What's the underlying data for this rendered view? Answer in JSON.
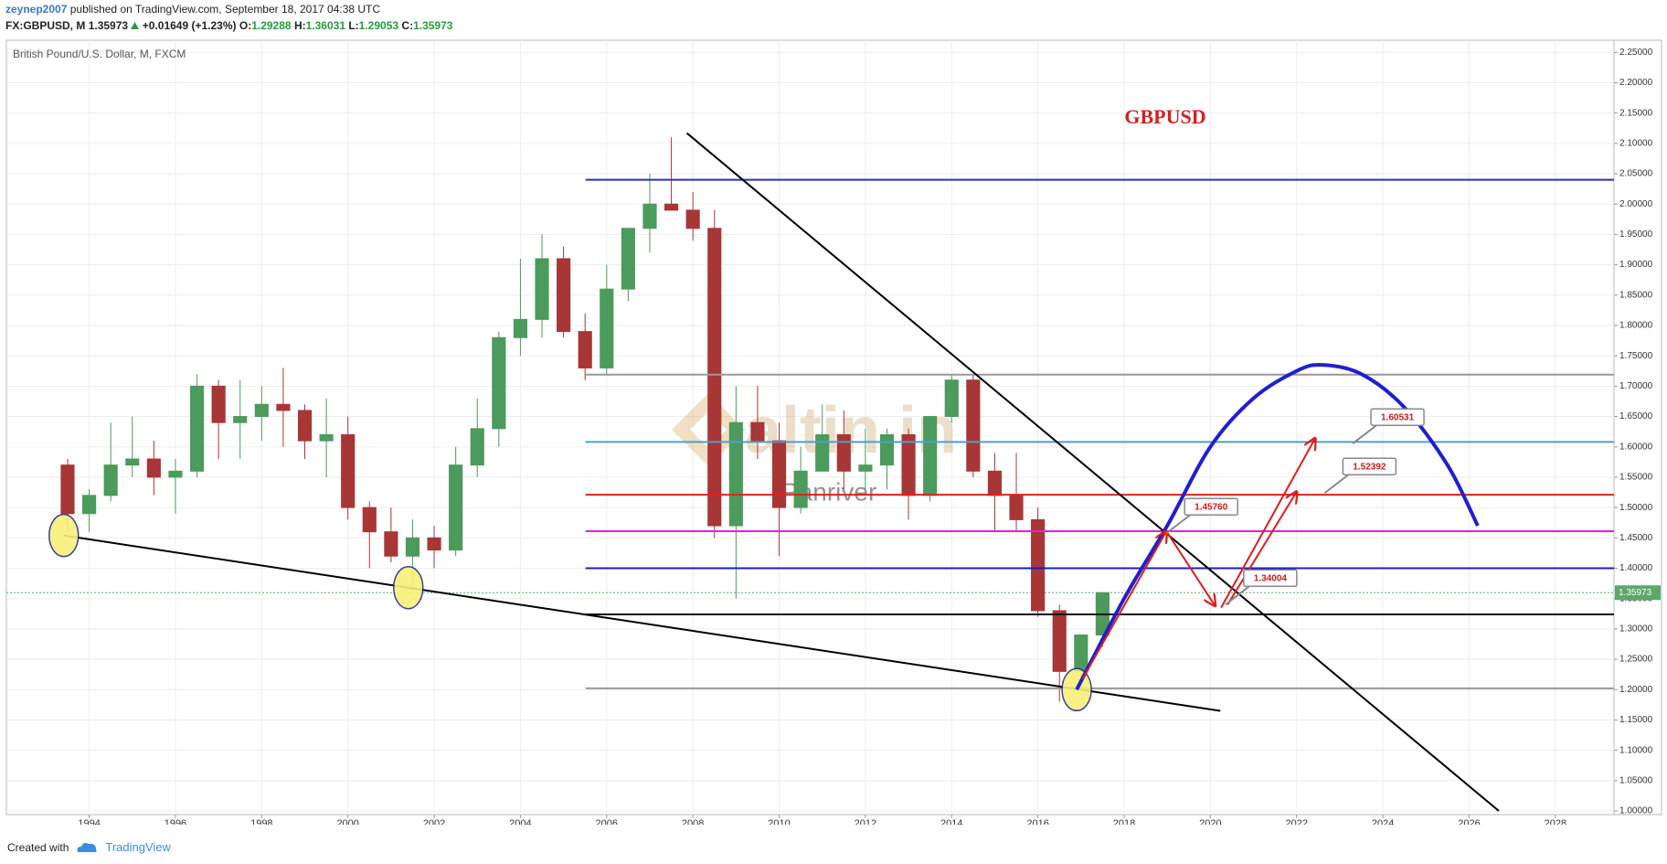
{
  "header": {
    "author": "zeynep2007",
    "published": "published on TradingView.com, September 18, 2017 04:38 UTC",
    "symbol": "FX:GBPUSD, M",
    "last": "1.35973",
    "change": "+0.01649 (+1.23%)",
    "open_label": "O:",
    "open": "1.29288",
    "high_label": "H:",
    "high": "1.36031",
    "low_label": "L:",
    "low": "1.29053",
    "close_label": "C:",
    "close": "1.35973"
  },
  "footer": {
    "created": "Created with",
    "brand": "TradingView"
  },
  "chart_data": {
    "type": "candlestick",
    "title": "GBPUSD",
    "subtitle": "British Pound/U.S. Dollar, M, FXCM",
    "watermark": {
      "logo": "altin.in",
      "sub": "Panriver"
    },
    "x": [
      1993.5,
      1994,
      1994.5,
      1995,
      1995.5,
      1996,
      1996.5,
      1997,
      1997.5,
      1998,
      1998.5,
      1999,
      1999.5,
      2000,
      2000.5,
      2001,
      2001.5,
      2002,
      2002.5,
      2003,
      2003.5,
      2004,
      2004.5,
      2005,
      2005.5,
      2006,
      2006.5,
      2007,
      2007.5,
      2008,
      2008.5,
      2009,
      2009.5,
      2010,
      2010.5,
      2011,
      2011.5,
      2012,
      2012.5,
      2013,
      2013.5,
      2014,
      2014.5,
      2015,
      2015.5,
      2016,
      2016.5,
      2017,
      2017.5
    ],
    "open": [
      1.57,
      1.49,
      1.52,
      1.57,
      1.58,
      1.55,
      1.56,
      1.7,
      1.64,
      1.65,
      1.67,
      1.66,
      1.61,
      1.62,
      1.5,
      1.46,
      1.42,
      1.45,
      1.43,
      1.57,
      1.63,
      1.78,
      1.81,
      1.91,
      1.79,
      1.73,
      1.86,
      1.96,
      2.0,
      1.99,
      1.96,
      1.47,
      1.64,
      1.61,
      1.5,
      1.56,
      1.62,
      1.56,
      1.57,
      1.62,
      1.52,
      1.65,
      1.71,
      1.56,
      1.52,
      1.48,
      1.33,
      1.23,
      1.29
    ],
    "high": [
      1.58,
      1.53,
      1.64,
      1.65,
      1.61,
      1.58,
      1.72,
      1.71,
      1.71,
      1.7,
      1.73,
      1.67,
      1.68,
      1.65,
      1.51,
      1.5,
      1.48,
      1.47,
      1.6,
      1.68,
      1.79,
      1.91,
      1.95,
      1.93,
      1.82,
      1.9,
      1.96,
      2.05,
      2.11,
      2.02,
      1.99,
      1.7,
      1.7,
      1.64,
      1.6,
      1.67,
      1.66,
      1.63,
      1.63,
      1.63,
      1.65,
      1.72,
      1.72,
      1.59,
      1.59,
      1.5,
      1.34,
      1.29,
      1.36
    ],
    "low": [
      1.46,
      1.46,
      1.51,
      1.55,
      1.52,
      1.49,
      1.55,
      1.58,
      1.58,
      1.61,
      1.6,
      1.58,
      1.55,
      1.48,
      1.4,
      1.41,
      1.37,
      1.4,
      1.42,
      1.55,
      1.6,
      1.75,
      1.78,
      1.78,
      1.71,
      1.72,
      1.84,
      1.92,
      1.99,
      1.94,
      1.45,
      1.35,
      1.58,
      1.42,
      1.49,
      1.56,
      1.53,
      1.53,
      1.53,
      1.48,
      1.51,
      1.64,
      1.55,
      1.46,
      1.46,
      1.32,
      1.18,
      1.2,
      1.27
    ],
    "close": [
      1.49,
      1.52,
      1.57,
      1.58,
      1.55,
      1.56,
      1.7,
      1.64,
      1.65,
      1.67,
      1.66,
      1.61,
      1.62,
      1.5,
      1.46,
      1.42,
      1.45,
      1.43,
      1.57,
      1.63,
      1.78,
      1.81,
      1.91,
      1.79,
      1.73,
      1.86,
      1.96,
      2.0,
      1.99,
      1.96,
      1.47,
      1.64,
      1.61,
      1.5,
      1.56,
      1.62,
      1.56,
      1.57,
      1.62,
      1.52,
      1.65,
      1.71,
      1.56,
      1.52,
      1.48,
      1.33,
      1.23,
      1.29,
      1.35973
    ],
    "up_color": "#4c9a5c",
    "down_color": "#a83636",
    "xlim": [
      1992.08,
      2029.36
    ],
    "ylim": [
      0.994,
      2.27
    ],
    "xticks": [
      1994,
      1996,
      1998,
      2000,
      2002,
      2004,
      2006,
      2008,
      2010,
      2012,
      2014,
      2016,
      2018,
      2020,
      2022,
      2024,
      2026,
      2028
    ],
    "yticks": [
      {
        "value": 1,
        "label": "1.00000"
      },
      {
        "value": 1.05,
        "label": "1.05000"
      },
      {
        "value": 1.1,
        "label": "1.10000"
      },
      {
        "value": 1.15,
        "label": "1.15000"
      },
      {
        "value": 1.2,
        "label": "1.20000"
      },
      {
        "value": 1.25,
        "label": "1.25000"
      },
      {
        "value": 1.3,
        "label": "1.30000"
      },
      {
        "value": 1.35,
        "label": "1.35000"
      },
      {
        "value": 1.4,
        "label": "1.40000"
      },
      {
        "value": 1.45,
        "label": "1.45000"
      },
      {
        "value": 1.5,
        "label": "1.50000"
      },
      {
        "value": 1.55,
        "label": "1.55000"
      },
      {
        "value": 1.6,
        "label": "1.60000"
      },
      {
        "value": 1.65,
        "label": "1.65000"
      },
      {
        "value": 1.7,
        "label": "1.70000"
      },
      {
        "value": 1.75,
        "label": "1.75000"
      },
      {
        "value": 1.8,
        "label": "1.80000"
      },
      {
        "value": 1.85,
        "label": "1.85000"
      },
      {
        "value": 1.9,
        "label": "1.90000"
      },
      {
        "value": 1.95,
        "label": "1.95000"
      },
      {
        "value": 2,
        "label": "2.00000"
      },
      {
        "value": 2.05,
        "label": "2.05000"
      },
      {
        "value": 2.1,
        "label": "2.10000"
      },
      {
        "value": 2.15,
        "label": "2.15000"
      },
      {
        "value": 2.2,
        "label": "2.20000"
      },
      {
        "value": 2.25,
        "label": "2.25000"
      }
    ],
    "grid": true,
    "last_price": 1.35973,
    "last_color": "#5aa86a",
    "hlines": [
      {
        "y": 2.04,
        "x0": 2005.51,
        "color": "#2e2eb8"
      },
      {
        "y": 1.719,
        "x0": 2005.51,
        "color": "#999999"
      },
      {
        "y": 1.608,
        "x0": 2005.51,
        "color": "#4a9fd0"
      },
      {
        "y": 1.521,
        "x0": 2005.51,
        "color": "#e02020"
      },
      {
        "y": 1.461,
        "x0": 2005.51,
        "color": "#e020e0"
      },
      {
        "y": 1.4,
        "x0": 2005.51,
        "color": "#1c1cc8"
      },
      {
        "y": 1.324,
        "x0": 2005.51,
        "color": "#111111"
      },
      {
        "y": 1.202,
        "x0": 2005.51,
        "color": "#999999"
      }
    ],
    "trendlines": [
      {
        "points": [
          [
            2007.86,
            2.117
          ],
          [
            2026.69,
            1.0
          ]
        ],
        "color": "#000000"
      },
      {
        "points": [
          [
            1993.41,
            1.454
          ],
          [
            2020.23,
            1.165
          ]
        ],
        "color": "#000000"
      }
    ],
    "curve": {
      "color": "#1f1fd0",
      "points": [
        [
          2016.9,
          1.2
        ],
        [
          2018,
          1.35
        ],
        [
          2019,
          1.47
        ],
        [
          2020,
          1.6
        ],
        [
          2021,
          1.68
        ],
        [
          2022,
          1.725
        ],
        [
          2022.6,
          1.735
        ],
        [
          2023.5,
          1.72
        ],
        [
          2024.5,
          1.665
        ],
        [
          2025.5,
          1.57
        ],
        [
          2026.2,
          1.47
        ]
      ]
    },
    "arrow_color": "#e01b1b",
    "arrows": [
      {
        "points": [
          [
            2017.03,
            1.217
          ],
          [
            2018.98,
            1.461
          ]
        ]
      },
      {
        "points": [
          [
            2018.98,
            1.461
          ],
          [
            2020.11,
            1.338
          ]
        ]
      },
      {
        "points": [
          [
            2020.4,
            1.34
          ],
          [
            2022.0,
            1.526
          ]
        ]
      },
      {
        "points": [
          [
            2020.25,
            1.335
          ],
          [
            2022.43,
            1.614
          ]
        ]
      }
    ],
    "price_labels": [
      {
        "x": 2018.98,
        "value": 1.4576,
        "label": "1.45760"
      },
      {
        "x": 2020.35,
        "value": 1.34004,
        "label": "1.34004"
      },
      {
        "x": 2022.65,
        "value": 1.52392,
        "label": "1.52392"
      },
      {
        "x": 2023.3,
        "value": 1.60531,
        "label": "1.60531"
      }
    ],
    "markers": {
      "color": "#f7f07a",
      "points": [
        [
          1993.41,
          1.454
        ],
        [
          2001.4,
          1.368
        ],
        [
          2016.9,
          1.2
        ]
      ]
    }
  }
}
